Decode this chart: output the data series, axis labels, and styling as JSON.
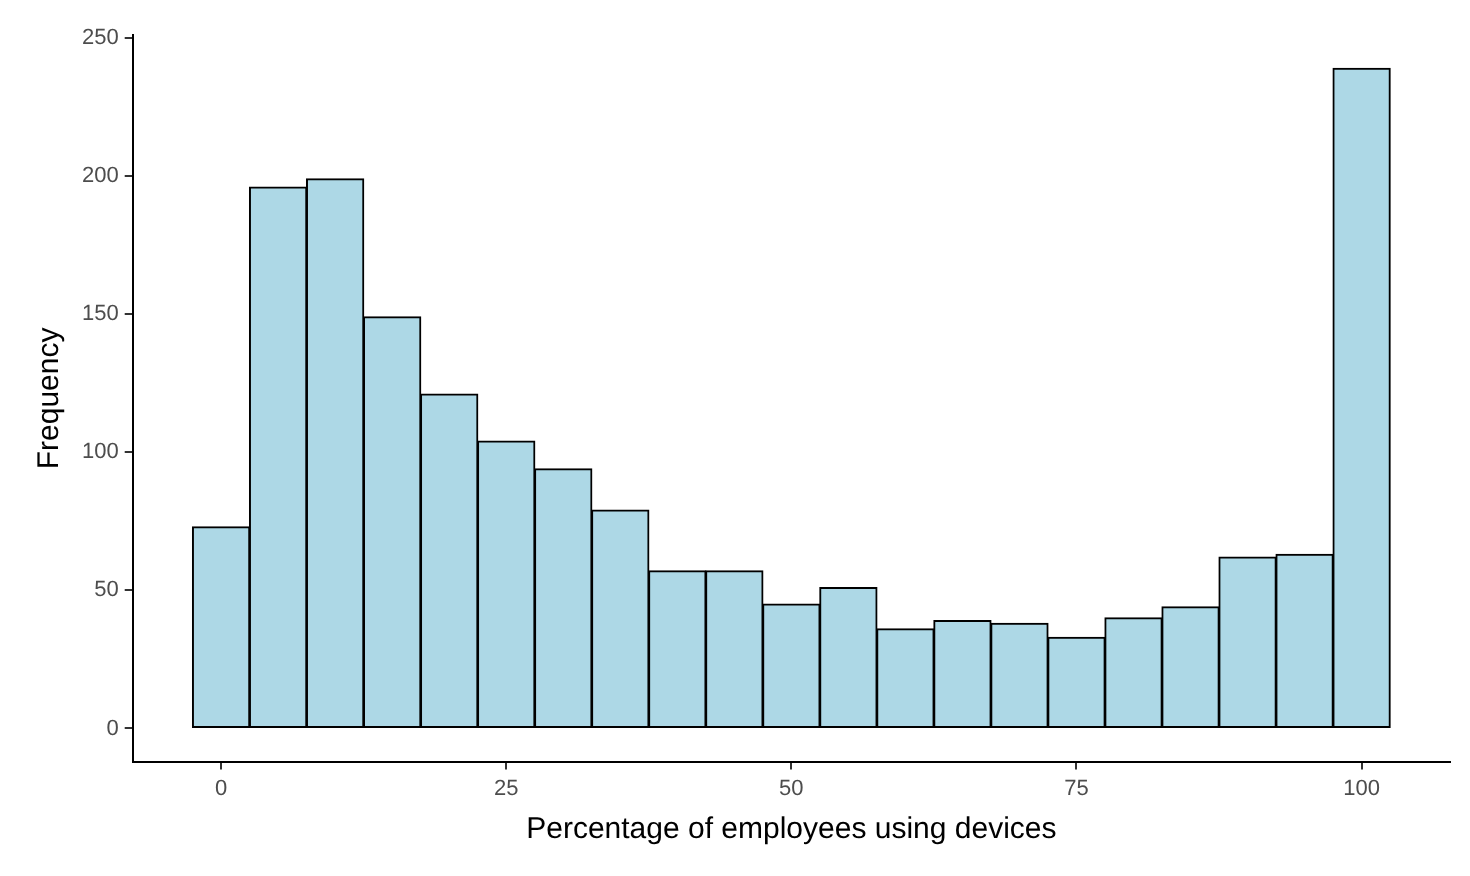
{
  "chart_data": {
    "type": "histogram",
    "xlabel": "Percentage of employees using devices",
    "ylabel": "Frequency",
    "bins": [
      -2.5,
      2.5,
      7.5,
      12.5,
      17.5,
      22.5,
      27.5,
      32.5,
      37.5,
      42.5,
      47.5,
      52.5,
      57.5,
      62.5,
      67.5,
      72.5,
      77.5,
      82.5,
      87.5,
      92.5,
      97.5,
      102.5
    ],
    "values": [
      73,
      196,
      199,
      149,
      121,
      104,
      94,
      79,
      57,
      57,
      45,
      51,
      36,
      39,
      38,
      33,
      40,
      44,
      62,
      63,
      239
    ],
    "color": "#add8e6",
    "xlim": [
      -7.75,
      107.75
    ],
    "xticks": [
      0,
      25,
      50,
      75,
      100
    ],
    "ylim": [
      -12,
      251
    ],
    "yticks": [
      0,
      50,
      100,
      150,
      200,
      250
    ],
    "grid": false,
    "legend": false
  }
}
